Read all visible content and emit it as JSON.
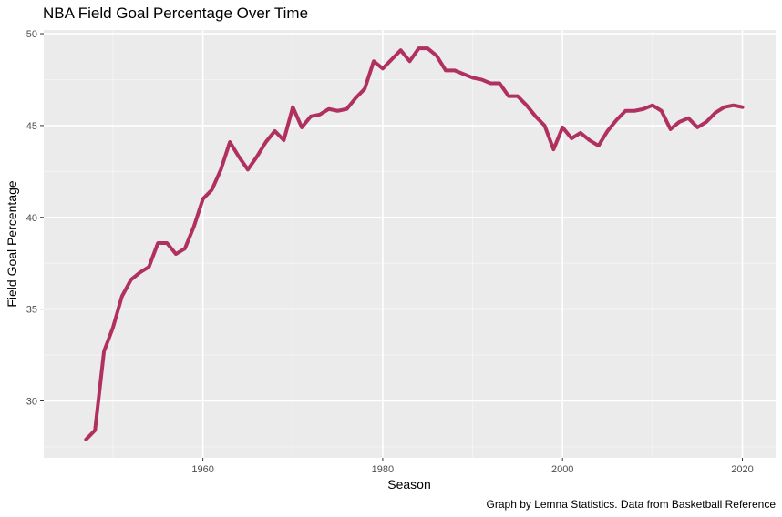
{
  "chart_data": {
    "type": "line",
    "title": "NBA Field Goal Percentage Over Time",
    "xlabel": "Season",
    "ylabel": "Field Goal Percentage",
    "caption": "Graph by Lemna Statistics. Data from Basketball Reference",
    "xlim": [
      1942.3,
      2023.7
    ],
    "ylim": [
      26.9,
      50.2
    ],
    "x_ticks": [
      1960,
      1980,
      2000,
      2020
    ],
    "x_tick_labels": [
      "1960",
      "1980",
      "2000",
      "2020"
    ],
    "y_ticks": [
      30,
      35,
      40,
      45,
      50
    ],
    "y_tick_labels": [
      "30",
      "35",
      "40",
      "45",
      "50"
    ],
    "grid": true,
    "background": "#ebebeb",
    "line_color": "#b03060",
    "series": [
      {
        "x": [
          1947,
          1948,
          1949,
          1950,
          1951,
          1952,
          1953,
          1954,
          1955,
          1956,
          1957,
          1958,
          1959,
          1960,
          1961,
          1962,
          1963,
          1964,
          1965,
          1966,
          1967,
          1968,
          1969,
          1970,
          1971,
          1972,
          1973,
          1974,
          1975,
          1976,
          1977,
          1978,
          1979,
          1980,
          1981,
          1982,
          1983,
          1984,
          1985,
          1986,
          1987,
          1988,
          1989,
          1990,
          1991,
          1992,
          1993,
          1994,
          1995,
          1996,
          1997,
          1998,
          1999,
          2000,
          2001,
          2002,
          2003,
          2004,
          2005,
          2006,
          2007,
          2008,
          2009,
          2010,
          2011,
          2012,
          2013,
          2014,
          2015,
          2016,
          2017,
          2018,
          2019,
          2020
        ],
        "values": [
          27.9,
          28.4,
          32.7,
          34.0,
          35.7,
          36.6,
          37.0,
          37.3,
          38.6,
          38.6,
          38.0,
          38.3,
          39.5,
          41.0,
          41.5,
          42.6,
          44.1,
          43.3,
          42.6,
          43.3,
          44.1,
          44.7,
          44.2,
          46.0,
          44.9,
          45.5,
          45.6,
          45.9,
          45.8,
          45.9,
          46.5,
          47.0,
          48.5,
          48.1,
          48.6,
          49.1,
          48.5,
          49.2,
          49.2,
          48.8,
          48.0,
          48.0,
          47.8,
          47.6,
          47.5,
          47.3,
          47.3,
          46.6,
          46.6,
          46.1,
          45.5,
          45.0,
          43.7,
          44.9,
          44.3,
          44.6,
          44.2,
          43.9,
          44.7,
          45.3,
          45.8,
          45.8,
          45.9,
          46.1,
          45.8,
          44.8,
          45.2,
          45.4,
          44.9,
          45.2,
          45.7,
          46.0,
          46.1,
          46.0
        ]
      }
    ]
  }
}
